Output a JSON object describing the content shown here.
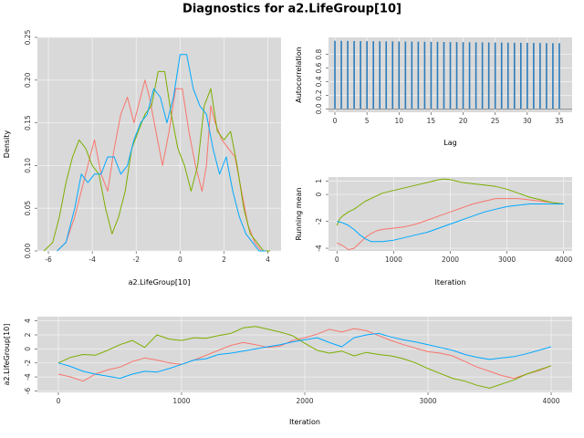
{
  "title": "Diagnostics for a2.LifeGroup[10]",
  "colors": {
    "panel_bg": "#d9d9d9",
    "grid": "#f2f2f2",
    "chain1": "#f8766d",
    "chain2": "#7cae00",
    "chain3": "#00a9ff",
    "acf_bar": "#2b7bba"
  },
  "chart_data": [
    {
      "type": "line",
      "panel": "density",
      "xlabel": "a2.LifeGroup[10]",
      "ylabel": "Density",
      "xlim": [
        -6.5,
        4.6
      ],
      "ylim": [
        0,
        0.25
      ],
      "x_ticks": [
        -6,
        -4,
        -2,
        0,
        2,
        4
      ],
      "y_ticks": [
        0,
        0.05,
        0.1,
        0.15,
        0.2,
        0.25
      ],
      "x_tick_labels": [
        "-6",
        "-4",
        "-2",
        "0",
        "2",
        "4"
      ],
      "y_tick_labels": [
        "0.00",
        "0.05",
        "0.10",
        "0.15",
        "0.20",
        "0.25"
      ],
      "series": [
        {
          "color": "#f8766d",
          "x": [
            -5.6,
            -5.2,
            -4.8,
            -4.5,
            -4.2,
            -3.9,
            -3.6,
            -3.3,
            -3.0,
            -2.7,
            -2.4,
            -2.1,
            -1.9,
            -1.6,
            -1.4,
            -1.1,
            -0.8,
            -0.5,
            -0.2,
            0.1,
            0.4,
            0.7,
            1.0,
            1.2,
            1.4,
            1.6,
            1.9,
            2.2,
            2.5,
            2.8,
            3.1,
            3.4,
            3.7,
            4.0
          ],
          "y": [
            0.0,
            0.01,
            0.04,
            0.07,
            0.1,
            0.13,
            0.09,
            0.07,
            0.12,
            0.16,
            0.18,
            0.15,
            0.17,
            0.2,
            0.18,
            0.14,
            0.1,
            0.14,
            0.19,
            0.19,
            0.14,
            0.1,
            0.07,
            0.1,
            0.17,
            0.15,
            0.13,
            0.12,
            0.11,
            0.07,
            0.03,
            0.01,
            0.0,
            0.0
          ]
        },
        {
          "color": "#7cae00",
          "x": [
            -6.2,
            -5.8,
            -5.5,
            -5.2,
            -4.9,
            -4.6,
            -4.3,
            -4.0,
            -3.7,
            -3.4,
            -3.1,
            -2.8,
            -2.5,
            -2.2,
            -1.9,
            -1.6,
            -1.3,
            -1.0,
            -0.7,
            -0.4,
            -0.1,
            0.2,
            0.5,
            0.8,
            1.1,
            1.4,
            1.7,
            2.0,
            2.3,
            2.6,
            2.9,
            3.2,
            3.5,
            3.8,
            4.1
          ],
          "y": [
            0.0,
            0.01,
            0.04,
            0.08,
            0.11,
            0.13,
            0.12,
            0.1,
            0.09,
            0.05,
            0.02,
            0.04,
            0.07,
            0.12,
            0.14,
            0.16,
            0.17,
            0.21,
            0.21,
            0.16,
            0.12,
            0.1,
            0.07,
            0.1,
            0.17,
            0.19,
            0.14,
            0.13,
            0.14,
            0.1,
            0.05,
            0.02,
            0.01,
            0.0,
            0.0
          ]
        },
        {
          "color": "#00a9ff",
          "x": [
            -5.6,
            -5.2,
            -4.8,
            -4.5,
            -4.2,
            -3.9,
            -3.6,
            -3.3,
            -3.0,
            -2.7,
            -2.4,
            -2.1,
            -1.8,
            -1.5,
            -1.2,
            -0.9,
            -0.6,
            -0.3,
            0.0,
            0.3,
            0.6,
            0.9,
            1.2,
            1.5,
            1.8,
            2.1,
            2.4,
            2.7,
            3.0,
            3.3,
            3.6,
            3.9
          ],
          "y": [
            0.0,
            0.01,
            0.05,
            0.09,
            0.08,
            0.09,
            0.09,
            0.11,
            0.11,
            0.09,
            0.1,
            0.13,
            0.15,
            0.16,
            0.19,
            0.18,
            0.15,
            0.18,
            0.23,
            0.23,
            0.19,
            0.17,
            0.16,
            0.12,
            0.09,
            0.11,
            0.07,
            0.04,
            0.02,
            0.01,
            0.0,
            0.0
          ]
        }
      ]
    },
    {
      "type": "bar",
      "panel": "autocorrelation",
      "xlabel": "Lag",
      "ylabel": "Autocorrelation",
      "xlim": [
        -1,
        37
      ],
      "ylim": [
        -0.05,
        1.05
      ],
      "x_ticks": [
        0,
        5,
        10,
        15,
        20,
        25,
        30,
        35
      ],
      "y_ticks": [
        0,
        0.2,
        0.4,
        0.6,
        0.8
      ],
      "x_tick_labels": [
        "0",
        "5",
        "10",
        "15",
        "20",
        "25",
        "30",
        "35"
      ],
      "y_tick_labels": [
        "0.0",
        "0.2",
        "0.4",
        "0.6",
        "0.8"
      ],
      "lags": [
        0,
        1,
        2,
        3,
        4,
        5,
        6,
        7,
        8,
        9,
        10,
        11,
        12,
        13,
        14,
        15,
        16,
        17,
        18,
        19,
        20,
        21,
        22,
        23,
        24,
        25,
        26,
        27,
        28,
        29,
        30,
        31,
        32,
        33,
        34,
        35
      ],
      "values": [
        1.0,
        0.999,
        0.998,
        0.997,
        0.996,
        0.995,
        0.994,
        0.993,
        0.992,
        0.991,
        0.99,
        0.989,
        0.988,
        0.987,
        0.986,
        0.985,
        0.984,
        0.983,
        0.982,
        0.981,
        0.98,
        0.979,
        0.978,
        0.977,
        0.976,
        0.975,
        0.974,
        0.973,
        0.972,
        0.971,
        0.97,
        0.969,
        0.968,
        0.967,
        0.966,
        0.965
      ]
    },
    {
      "type": "line",
      "panel": "running-mean",
      "xlabel": "Iteration",
      "ylabel": "Running mean",
      "xlim": [
        -150,
        4150
      ],
      "ylim": [
        -4.2,
        1.3
      ],
      "x_ticks": [
        0,
        1000,
        2000,
        3000,
        4000
      ],
      "y_ticks": [
        -4,
        -2,
        0,
        1
      ],
      "x_tick_labels": [
        "0",
        "1000",
        "2000",
        "3000",
        "4000"
      ],
      "y_tick_labels": [
        "-4",
        "-2",
        "0",
        "1"
      ],
      "series": [
        {
          "color": "#f8766d",
          "x": [
            0,
            100,
            200,
            300,
            400,
            500,
            600,
            700,
            800,
            1000,
            1200,
            1400,
            1600,
            1800,
            2000,
            2200,
            2400,
            2600,
            2800,
            3000,
            3200,
            3400,
            3600,
            3800,
            4000
          ],
          "y": [
            -3.6,
            -3.8,
            -4.1,
            -4.0,
            -3.6,
            -3.2,
            -2.9,
            -2.7,
            -2.6,
            -2.5,
            -2.4,
            -2.2,
            -1.9,
            -1.6,
            -1.3,
            -1.0,
            -0.7,
            -0.5,
            -0.3,
            -0.3,
            -0.3,
            -0.4,
            -0.5,
            -0.6,
            -0.7
          ]
        },
        {
          "color": "#7cae00",
          "x": [
            0,
            50,
            100,
            200,
            300,
            400,
            500,
            600,
            700,
            800,
            1000,
            1200,
            1400,
            1600,
            1800,
            1900,
            2000,
            2200,
            2400,
            2600,
            2800,
            3000,
            3200,
            3400,
            3600,
            3800,
            4000
          ],
          "y": [
            -2.3,
            -1.8,
            -1.6,
            -1.3,
            -1.1,
            -0.8,
            -0.5,
            -0.3,
            -0.1,
            0.1,
            0.3,
            0.5,
            0.7,
            0.9,
            1.1,
            1.15,
            1.1,
            0.9,
            0.8,
            0.7,
            0.6,
            0.4,
            0.1,
            -0.2,
            -0.4,
            -0.6,
            -0.7
          ]
        },
        {
          "color": "#00a9ff",
          "x": [
            0,
            100,
            200,
            300,
            400,
            500,
            600,
            700,
            800,
            1000,
            1200,
            1400,
            1600,
            1800,
            2000,
            2200,
            2400,
            2600,
            2800,
            3000,
            3200,
            3400,
            3600,
            3800,
            4000
          ],
          "y": [
            -2.0,
            -2.1,
            -2.3,
            -2.6,
            -3.0,
            -3.3,
            -3.5,
            -3.5,
            -3.5,
            -3.4,
            -3.2,
            -3.0,
            -2.8,
            -2.5,
            -2.2,
            -1.9,
            -1.6,
            -1.3,
            -1.1,
            -0.9,
            -0.8,
            -0.7,
            -0.7,
            -0.7,
            -0.7
          ]
        }
      ]
    },
    {
      "type": "line",
      "panel": "trace",
      "xlabel": "Iteration",
      "ylabel": "a2.LifeGroup[10]",
      "xlim": [
        -170,
        4170
      ],
      "ylim": [
        -6.2,
        4.6
      ],
      "x_ticks": [
        0,
        1000,
        2000,
        3000,
        4000
      ],
      "y_ticks": [
        -6,
        -4,
        -2,
        0,
        2,
        4
      ],
      "x_tick_labels": [
        "0",
        "1000",
        "2000",
        "3000",
        "4000"
      ],
      "y_tick_labels": [
        "-6",
        "-4",
        "-2",
        "0",
        "2",
        "4"
      ],
      "series": [
        {
          "color": "#f8766d",
          "x": [
            0,
            100,
            200,
            300,
            400,
            500,
            600,
            700,
            800,
            900,
            1000,
            1100,
            1200,
            1300,
            1400,
            1500,
            1600,
            1700,
            1800,
            1900,
            2000,
            2100,
            2200,
            2300,
            2400,
            2500,
            2600,
            2700,
            2800,
            2900,
            3000,
            3100,
            3200,
            3300,
            3400,
            3500,
            3600,
            3700,
            3800,
            3900,
            4000
          ],
          "y": [
            -3.6,
            -4.0,
            -4.6,
            -3.6,
            -3.0,
            -2.6,
            -1.8,
            -1.3,
            -1.6,
            -2.0,
            -2.2,
            -1.6,
            -0.9,
            -0.2,
            0.5,
            0.9,
            0.6,
            0.2,
            0.4,
            1.2,
            1.6,
            2.1,
            2.8,
            2.4,
            2.9,
            2.6,
            1.9,
            1.2,
            0.6,
            0.1,
            -0.4,
            -0.6,
            -1.0,
            -1.8,
            -2.6,
            -3.2,
            -3.8,
            -4.2,
            -3.6,
            -3.1,
            -2.4
          ]
        },
        {
          "color": "#7cae00",
          "x": [
            0,
            100,
            200,
            300,
            400,
            500,
            600,
            700,
            800,
            900,
            1000,
            1100,
            1200,
            1300,
            1400,
            1500,
            1600,
            1700,
            1800,
            1900,
            2000,
            2100,
            2200,
            2300,
            2400,
            2500,
            2600,
            2700,
            2800,
            2900,
            3000,
            3100,
            3200,
            3300,
            3400,
            3500,
            3600,
            3700,
            3800,
            3900,
            4000
          ],
          "y": [
            -2.0,
            -1.2,
            -0.8,
            -0.9,
            -0.2,
            0.6,
            1.2,
            0.2,
            2.0,
            1.4,
            1.2,
            1.6,
            1.5,
            1.9,
            2.2,
            3.0,
            3.2,
            2.8,
            2.4,
            1.9,
            0.8,
            -0.2,
            -0.6,
            -0.3,
            -1.0,
            -0.5,
            -0.8,
            -1.0,
            -1.4,
            -2.0,
            -2.8,
            -3.5,
            -4.2,
            -4.6,
            -5.2,
            -5.6,
            -5.0,
            -4.4,
            -3.6,
            -3.0,
            -2.4
          ]
        },
        {
          "color": "#00a9ff",
          "x": [
            0,
            100,
            200,
            300,
            400,
            500,
            600,
            700,
            800,
            900,
            1000,
            1100,
            1200,
            1300,
            1400,
            1500,
            1600,
            1700,
            1800,
            1900,
            2000,
            2100,
            2200,
            2300,
            2400,
            2500,
            2600,
            2700,
            2800,
            2900,
            3000,
            3100,
            3200,
            3300,
            3400,
            3500,
            3600,
            3700,
            3800,
            3900,
            4000
          ],
          "y": [
            -2.0,
            -2.5,
            -3.2,
            -3.6,
            -3.9,
            -4.2,
            -3.6,
            -3.2,
            -3.3,
            -2.8,
            -2.2,
            -1.6,
            -1.4,
            -0.8,
            -0.6,
            -0.3,
            0.0,
            0.3,
            0.6,
            1.0,
            1.3,
            1.6,
            0.9,
            0.3,
            1.6,
            2.0,
            2.2,
            1.7,
            1.3,
            1.0,
            0.6,
            0.2,
            -0.2,
            -0.8,
            -1.2,
            -1.5,
            -1.3,
            -1.1,
            -0.7,
            -0.2,
            0.3
          ]
        }
      ]
    }
  ]
}
